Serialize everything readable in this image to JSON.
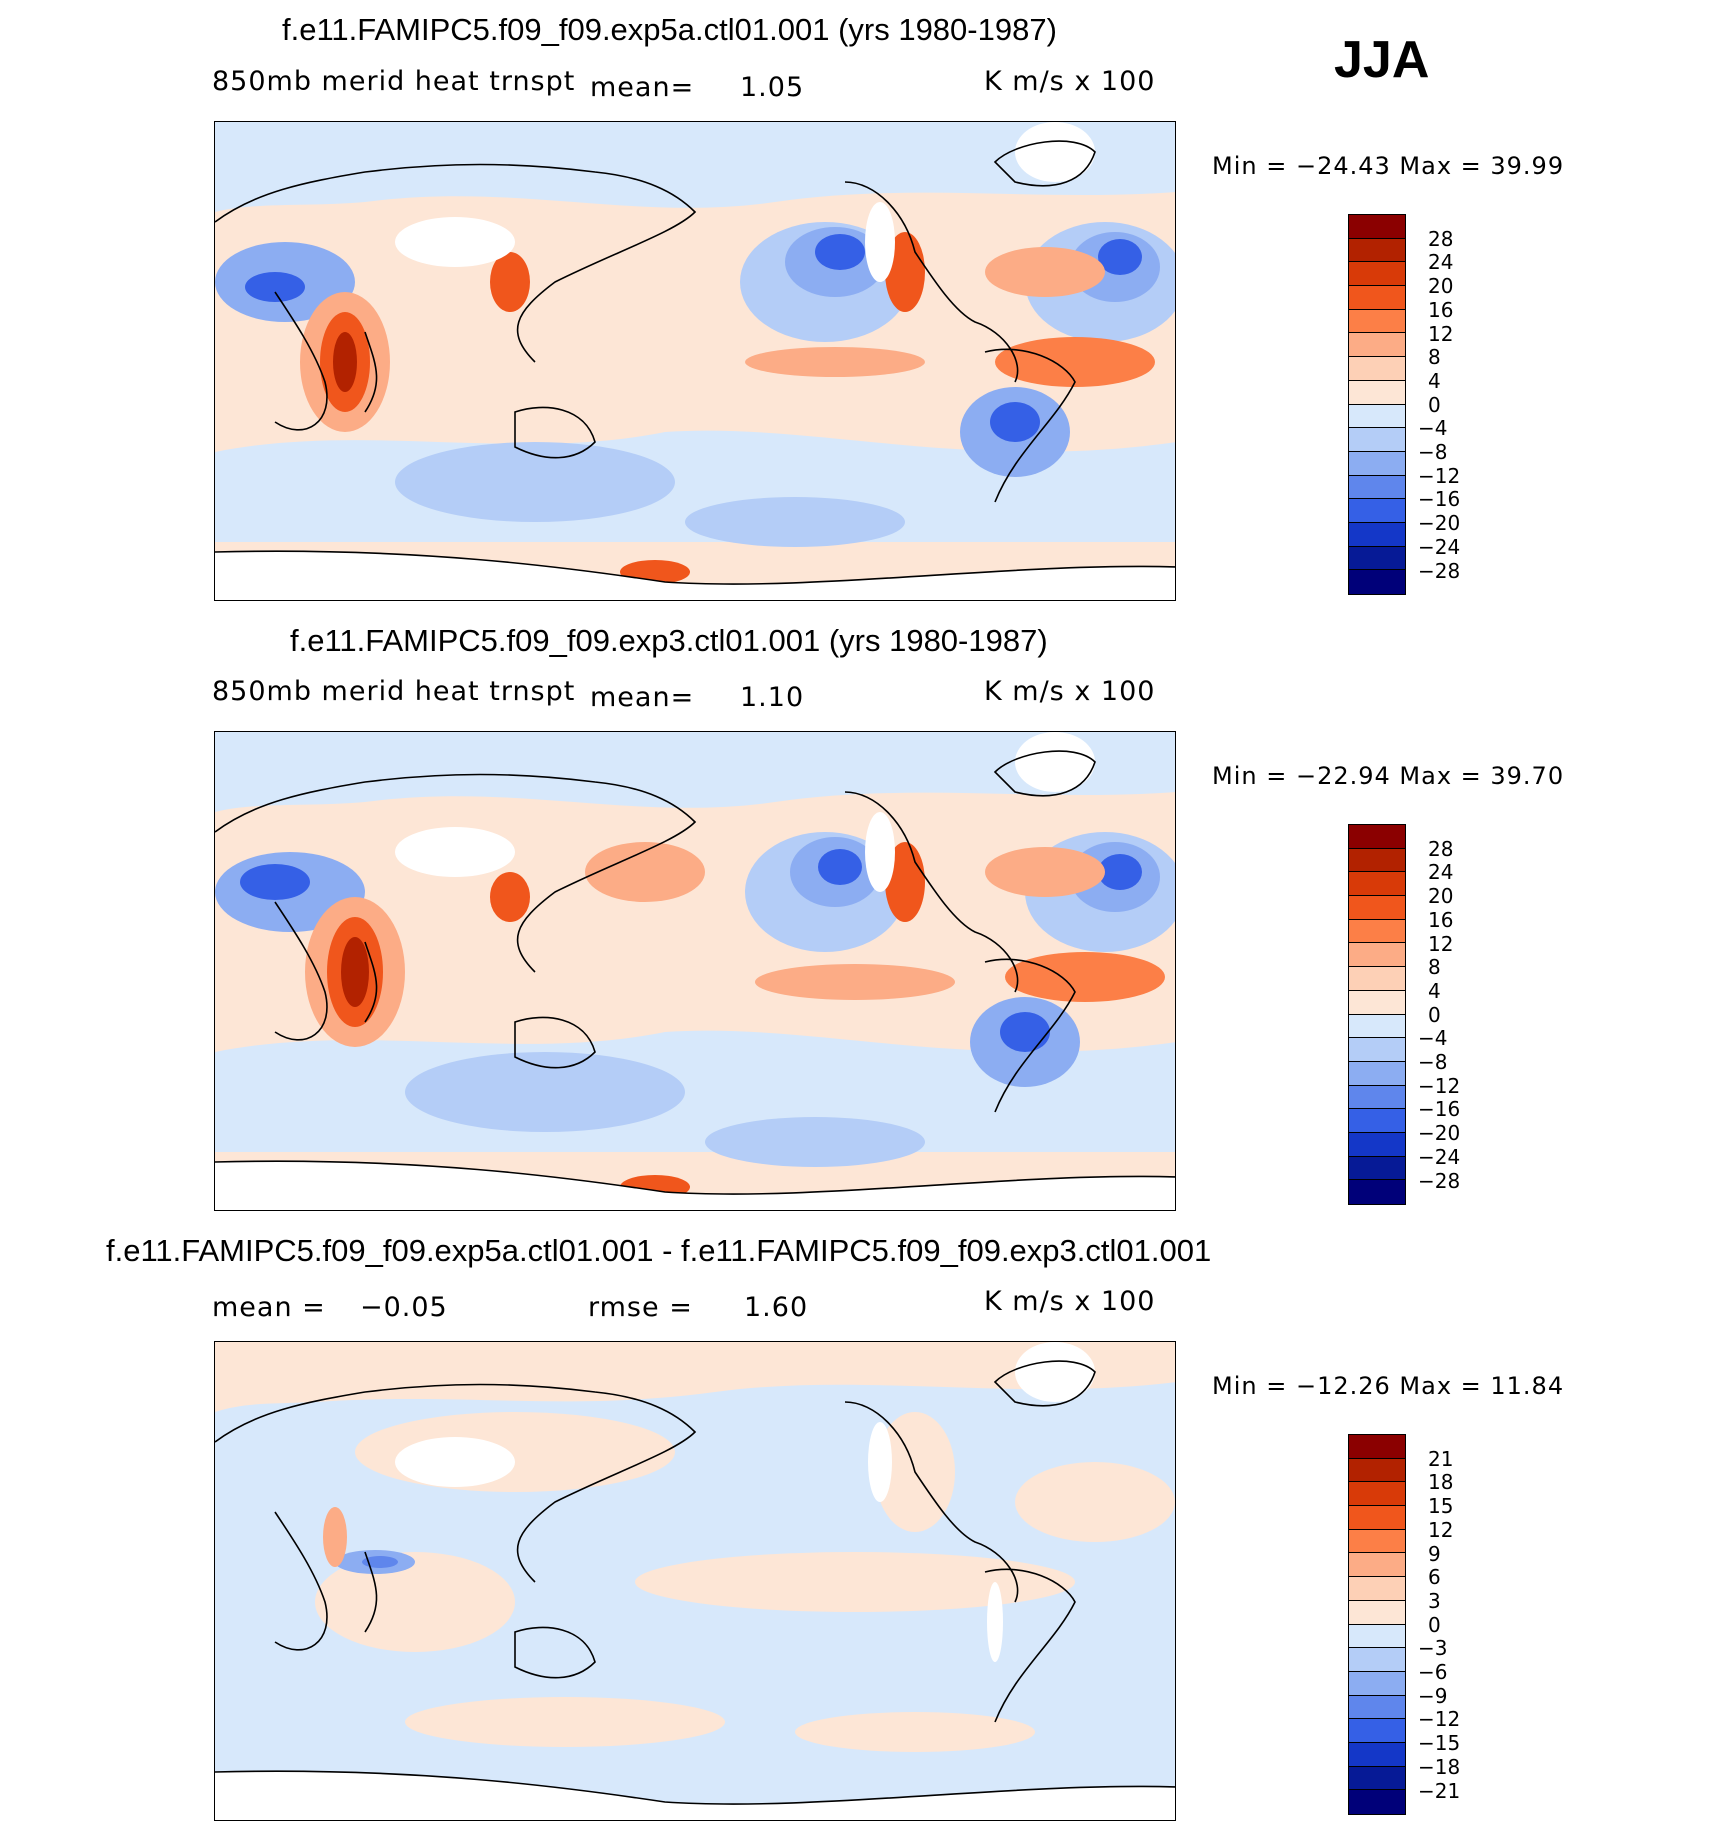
{
  "season": "JJA",
  "panels": [
    {
      "title": "f.e11.FAMIPC5.f09_f09.exp5a.ctl01.001 (yrs 1980-1987)",
      "variable": "850mb merid heat trnspt",
      "stat1_label": "mean=",
      "stat1_value": "1.05",
      "stat2_label": "",
      "stat2_value": "",
      "units": "K m/s x 100",
      "minmax": "Min = −24.43 Max =   39.99",
      "colorbar_labels": [
        "28",
        "24",
        "20",
        "16",
        "12",
        "8",
        "4",
        "0",
        "−4",
        "−8",
        "−12",
        "−16",
        "−20",
        "−24",
        "−28"
      ]
    },
    {
      "title": "f.e11.FAMIPC5.f09_f09.exp3.ctl01.001 (yrs 1980-1987)",
      "variable": "850mb merid heat trnspt",
      "stat1_label": "mean=",
      "stat1_value": "1.10",
      "stat2_label": "",
      "stat2_value": "",
      "units": "K m/s x 100",
      "minmax": "Min = −22.94 Max =   39.70",
      "colorbar_labels": [
        "28",
        "24",
        "20",
        "16",
        "12",
        "8",
        "4",
        "0",
        "−4",
        "−8",
        "−12",
        "−16",
        "−20",
        "−24",
        "−28"
      ]
    },
    {
      "title": "f.e11.FAMIPC5.f09_f09.exp5a.ctl01.001 - f.e11.FAMIPC5.f09_f09.exp3.ctl01.001",
      "variable": "",
      "stat1_label": "mean =",
      "stat1_value": "−0.05",
      "stat2_label": "rmse =",
      "stat2_value": "1.60",
      "units": "K m/s x 100",
      "minmax": "Min = −12.26 Max =   11.84",
      "colorbar_labels": [
        "21",
        "18",
        "15",
        "12",
        "9",
        "6",
        "3",
        "0",
        "−3",
        "−6",
        "−9",
        "−12",
        "−15",
        "−18",
        "−21"
      ]
    }
  ],
  "colors": {
    "scale": [
      "#8b0000",
      "#b22200",
      "#d83a08",
      "#f0561c",
      "#fc7f47",
      "#fcac86",
      "#fdd0b6",
      "#fde6d6",
      "#d7e8fb",
      "#b4cdf7",
      "#8cadf2",
      "#5f86ec",
      "#3560e6",
      "#1437c8",
      "#061a96",
      "#000079"
    ]
  },
  "chart_data": [
    {
      "type": "heatmap",
      "title": "f.e11.FAMIPC5.f09_f09.exp5a.ctl01.001 (yrs 1980-1987)",
      "subtitle": "850mb merid heat trnspt",
      "units": "K m/s x 100",
      "mean": 1.05,
      "min": -24.43,
      "max": 39.99,
      "levels": [
        28,
        24,
        20,
        16,
        12,
        8,
        4,
        0,
        -4,
        -8,
        -12,
        -16,
        -20,
        -24,
        -28
      ]
    },
    {
      "type": "heatmap",
      "title": "f.e11.FAMIPC5.f09_f09.exp3.ctl01.001 (yrs 1980-1987)",
      "subtitle": "850mb merid heat trnspt",
      "units": "K m/s x 100",
      "mean": 1.1,
      "min": -22.94,
      "max": 39.7,
      "levels": [
        28,
        24,
        20,
        16,
        12,
        8,
        4,
        0,
        -4,
        -8,
        -12,
        -16,
        -20,
        -24,
        -28
      ]
    },
    {
      "type": "heatmap",
      "title": "f.e11.FAMIPC5.f09_f09.exp5a.ctl01.001 - f.e11.FAMIPC5.f09_f09.exp3.ctl01.001",
      "units": "K m/s x 100",
      "mean": -0.05,
      "rmse": 1.6,
      "min": -12.26,
      "max": 11.84,
      "levels": [
        21,
        18,
        15,
        12,
        9,
        6,
        3,
        0,
        -3,
        -6,
        -9,
        -12,
        -15,
        -18,
        -21
      ]
    }
  ]
}
